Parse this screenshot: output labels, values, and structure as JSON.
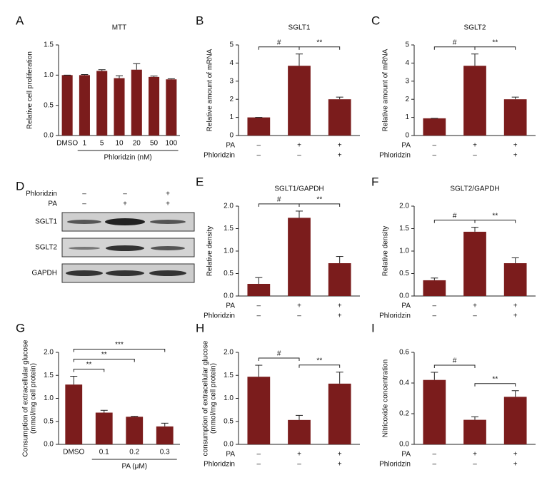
{
  "chart_data": [
    {
      "type": "bar",
      "label": "A",
      "title": "MTT",
      "ylabel": "Relative cell proliferation",
      "color": "#7b1c1c",
      "categories": [
        "DMSO",
        "1",
        "5",
        "10",
        "20",
        "50",
        "100"
      ],
      "values": [
        1.0,
        1.0,
        1.07,
        0.95,
        1.09,
        0.97,
        0.93
      ],
      "errors": [
        0,
        0.01,
        0.02,
        0.04,
        0.1,
        0.015,
        0.01
      ],
      "group_label": {
        "text": "Phloridzin (nM)",
        "from": 1,
        "to": 6
      },
      "ylim": [
        0,
        1.5
      ],
      "yticks": [
        {
          "value": 0,
          "label": "0.0"
        },
        {
          "value": 0.5,
          "label": "0.5"
        },
        {
          "value": 1,
          "label": "1.0"
        },
        {
          "value": 1.5,
          "label": "1.5"
        }
      ]
    },
    {
      "type": "bar",
      "label": "B",
      "title": "SGLT1",
      "ylabel": "Relative amount of mRNA",
      "color": "#7b1c1c",
      "values": [
        1.0,
        3.85,
        2.0
      ],
      "errors": [
        0,
        0.65,
        0.12
      ],
      "conditions": [
        {
          "name": "PA",
          "values": [
            "–",
            "+",
            "+"
          ]
        },
        {
          "name": "Phloridzin",
          "values": [
            "–",
            "–",
            "+"
          ]
        }
      ],
      "brackets": [
        {
          "from": 0,
          "to": 1,
          "label": "#"
        },
        {
          "from": 1,
          "to": 2,
          "label": "**"
        }
      ],
      "ylim": [
        0,
        5
      ],
      "yticks": [
        0,
        1,
        2,
        3,
        4,
        5
      ]
    },
    {
      "type": "bar",
      "label": "C",
      "title": "SGLT2",
      "ylabel": "Relative amount of mRNA",
      "color": "#7b1c1c",
      "values": [
        0.95,
        3.85,
        2.0
      ],
      "errors": [
        0,
        0.65,
        0.12
      ],
      "conditions": [
        {
          "name": "PA",
          "values": [
            "–",
            "+",
            "+"
          ]
        },
        {
          "name": "Phloridzin",
          "values": [
            "–",
            "–",
            "+"
          ]
        }
      ],
      "brackets": [
        {
          "from": 0,
          "to": 1,
          "label": "#"
        },
        {
          "from": 1,
          "to": 2,
          "label": "**"
        }
      ],
      "ylim": [
        0,
        5
      ],
      "yticks": [
        0,
        1,
        2,
        3,
        4,
        5
      ]
    },
    {
      "type": "bar",
      "label": "E",
      "title": "SGLT1/GAPDH",
      "ylabel": "Relative density",
      "color": "#7b1c1c",
      "values": [
        0.27,
        1.74,
        0.73
      ],
      "errors": [
        0.14,
        0.15,
        0.15
      ],
      "conditions": [
        {
          "name": "PA",
          "values": [
            "–",
            "+",
            "+"
          ]
        },
        {
          "name": "Phloridzin",
          "values": [
            "–",
            "–",
            "+"
          ]
        }
      ],
      "brackets": [
        {
          "from": 0,
          "to": 1,
          "label": "#"
        },
        {
          "from": 1,
          "to": 2,
          "label": "**"
        }
      ],
      "ylim": [
        0,
        2
      ],
      "yticks": [
        {
          "value": 0,
          "label": "0.0"
        },
        {
          "value": 0.5,
          "label": "0.5"
        },
        {
          "value": 1,
          "label": "1.0"
        },
        {
          "value": 1.5,
          "label": "1.5"
        },
        {
          "value": 2,
          "label": "2.0"
        }
      ]
    },
    {
      "type": "bar",
      "label": "F",
      "title": "SGLT2/GAPDH",
      "ylabel": "Relative density",
      "color": "#7b1c1c",
      "values": [
        0.35,
        1.43,
        0.73
      ],
      "errors": [
        0.05,
        0.1,
        0.12
      ],
      "conditions": [
        {
          "name": "PA",
          "values": [
            "–",
            "+",
            "+"
          ]
        },
        {
          "name": "Phloridzin",
          "values": [
            "–",
            "–",
            "+"
          ]
        }
      ],
      "brackets": [
        {
          "from": 0,
          "to": 1,
          "label": "#"
        },
        {
          "from": 1,
          "to": 2,
          "label": "**"
        }
      ],
      "ylim": [
        0,
        2
      ],
      "yticks": [
        {
          "value": 0,
          "label": "0.0"
        },
        {
          "value": 0.5,
          "label": "0.5"
        },
        {
          "value": 1,
          "label": "1.0"
        },
        {
          "value": 1.5,
          "label": "1.5"
        },
        {
          "value": 2,
          "label": "2.0"
        }
      ]
    },
    {
      "type": "bar",
      "label": "G",
      "ylabel": [
        "Consumption of extracellular glucose",
        "(mmol/mg cell protein)"
      ],
      "color": "#7b1c1c",
      "categories": [
        "DMSO",
        "0.1",
        "0.2",
        "0.3"
      ],
      "values": [
        1.3,
        0.69,
        0.6,
        0.39
      ],
      "errors": [
        0.18,
        0.05,
        0.01,
        0.07
      ],
      "group_label": {
        "text": "PA (μM)",
        "from": 1,
        "to": 3
      },
      "brackets": [
        {
          "from": 0,
          "to": 1,
          "label": "**"
        },
        {
          "from": 0,
          "to": 2,
          "label": "**"
        },
        {
          "from": 0,
          "to": 3,
          "label": "***"
        }
      ],
      "ylim": [
        0,
        2
      ],
      "yticks": [
        {
          "value": 0,
          "label": "0.0"
        },
        {
          "value": 0.5,
          "label": "0.5"
        },
        {
          "value": 1,
          "label": "1.0"
        },
        {
          "value": 1.5,
          "label": "1.5"
        },
        {
          "value": 2,
          "label": "2.0"
        }
      ]
    },
    {
      "type": "bar",
      "label": "H",
      "ylabel": [
        "consumption of extracellular glucose",
        "(mmol/mg cell protein)"
      ],
      "color": "#7b1c1c",
      "values": [
        1.47,
        0.53,
        1.32
      ],
      "errors": [
        0.25,
        0.1,
        0.25
      ],
      "conditions": [
        {
          "name": "PA",
          "values": [
            "–",
            "+",
            "+"
          ]
        },
        {
          "name": "Phloridzin",
          "values": [
            "–",
            "–",
            "+"
          ]
        }
      ],
      "brackets": [
        {
          "from": 0,
          "to": 1,
          "label": "#"
        },
        {
          "from": 1,
          "to": 2,
          "label": "**"
        }
      ],
      "ylim": [
        0,
        2
      ],
      "yticks": [
        {
          "value": 0,
          "label": "0.0"
        },
        {
          "value": 0.5,
          "label": "0.5"
        },
        {
          "value": 1,
          "label": "1.0"
        },
        {
          "value": 1.5,
          "label": "1.5"
        },
        {
          "value": 2,
          "label": "2.0"
        }
      ]
    },
    {
      "type": "bar",
      "label": "I",
      "ylabel": "Nitricoxide concentration",
      "color": "#7b1c1c",
      "values": [
        0.42,
        0.16,
        0.31
      ],
      "errors": [
        0.05,
        0.02,
        0.04
      ],
      "conditions": [
        {
          "name": "PA",
          "values": [
            "–",
            "+",
            "+"
          ]
        },
        {
          "name": "Phloridzin",
          "values": [
            "–",
            "–",
            "+"
          ]
        }
      ],
      "brackets": [
        {
          "from": 0,
          "to": 1,
          "label": "#"
        },
        {
          "from": 1,
          "to": 2,
          "label": "**"
        }
      ],
      "ylim": [
        0,
        0.6
      ],
      "yticks": [
        {
          "value": 0,
          "label": "0.0"
        },
        {
          "value": 0.2,
          "label": "0.2"
        },
        {
          "value": 0.4,
          "label": "0.4"
        },
        {
          "value": 0.6,
          "label": "0.6"
        }
      ]
    }
  ],
  "blot": {
    "label": "D",
    "conditions": [
      {
        "name": "Phloridzin",
        "values": [
          "–",
          "–",
          "+"
        ]
      },
      {
        "name": "PA",
        "values": [
          "–",
          "+",
          "+"
        ]
      }
    ],
    "bands": [
      "SGLT1",
      "SGLT2",
      "GAPDH"
    ]
  }
}
